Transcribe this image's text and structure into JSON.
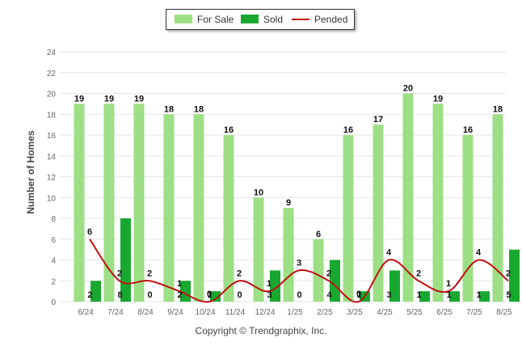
{
  "legend": {
    "for_sale": "For Sale",
    "sold": "Sold",
    "pended": "Pended"
  },
  "copyright": "Copyright © Trendgraphix, Inc.",
  "colors": {
    "for_sale": "#9ddf85",
    "sold": "#18a830",
    "pended": "#c01010",
    "grid": "#e6e6e6",
    "axis_text": "#666666"
  },
  "chart_data": {
    "type": "bar",
    "ylabel": "Number of Homes",
    "xlabel": "",
    "ylim": [
      0,
      24
    ],
    "yticks": [
      0,
      2,
      4,
      6,
      8,
      10,
      12,
      14,
      16,
      18,
      20,
      22,
      24
    ],
    "grid": true,
    "legend_position": "top-center",
    "categories": [
      "6/24",
      "7/24",
      "8/24",
      "9/24",
      "10/24",
      "11/24",
      "12/24",
      "1/25",
      "2/25",
      "3/25",
      "4/25",
      "5/25",
      "6/25",
      "7/25",
      "8/25"
    ],
    "series": [
      {
        "name": "For Sale",
        "type": "bar",
        "values": [
          19,
          19,
          19,
          18,
          18,
          16,
          10,
          9,
          6,
          16,
          17,
          20,
          19,
          16,
          18
        ]
      },
      {
        "name": "Sold",
        "type": "bar",
        "values": [
          2,
          8,
          0,
          2,
          1,
          0,
          3,
          0,
          4,
          1,
          3,
          1,
          1,
          1,
          5
        ]
      },
      {
        "name": "Pended",
        "type": "line",
        "values": [
          6,
          2,
          2,
          1,
          0,
          2,
          1,
          3,
          2,
          0,
          4,
          2,
          1,
          4,
          2
        ]
      }
    ]
  }
}
